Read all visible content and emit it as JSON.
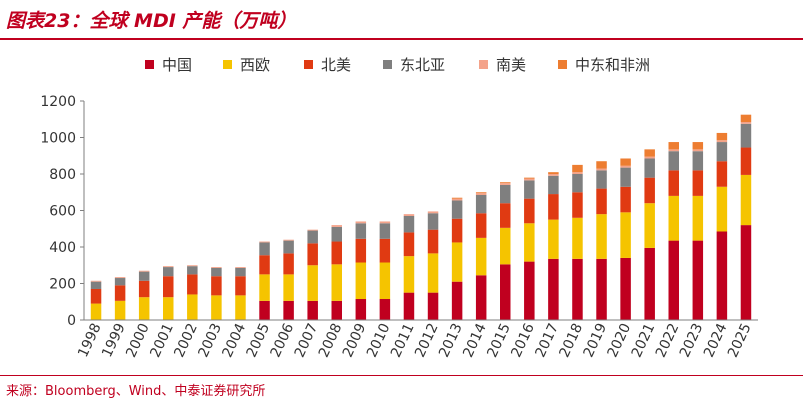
{
  "header": {
    "title": "图表23：全球 MDI 产能（万吨）"
  },
  "footer": {
    "source": "来源：Bloomberg、Wind、中泰证券研究所"
  },
  "colors": {
    "中国": "#c0001f",
    "西欧": "#f5c400",
    "北美": "#e03a12",
    "东北亚": "#7f7f7f",
    "南美": "#f4a38a",
    "中东和非洲": "#ed7d31"
  },
  "chart_data": {
    "type": "bar",
    "stacked": true,
    "title": "全球 MDI 产能（万吨）",
    "xlabel": "",
    "ylabel": "",
    "ylim": [
      0,
      1200
    ],
    "yticks": [
      0,
      200,
      400,
      600,
      800,
      1000,
      1200
    ],
    "grid": false,
    "legend_position": "top",
    "categories": [
      "1998",
      "1999",
      "2000",
      "2001",
      "2002",
      "2003",
      "2004",
      "2005",
      "2006",
      "2007",
      "2008",
      "2009",
      "2010",
      "2011",
      "2012",
      "2013",
      "2014",
      "2015",
      "2016",
      "2017",
      "2018",
      "2019",
      "2020",
      "2021",
      "2022",
      "2023",
      "2024",
      "2025"
    ],
    "series": [
      {
        "name": "中国",
        "values": [
          0,
          0,
          0,
          0,
          0,
          0,
          0,
          105,
          105,
          105,
          105,
          115,
          115,
          150,
          150,
          210,
          245,
          305,
          320,
          335,
          335,
          335,
          340,
          395,
          435,
          435,
          485,
          520
        ]
      },
      {
        "name": "西欧",
        "values": [
          90,
          105,
          125,
          125,
          140,
          135,
          135,
          145,
          145,
          195,
          200,
          200,
          200,
          200,
          215,
          215,
          205,
          200,
          210,
          215,
          225,
          245,
          250,
          245,
          245,
          245,
          245,
          275
        ]
      },
      {
        "name": "北美",
        "values": [
          80,
          85,
          90,
          115,
          110,
          105,
          105,
          105,
          115,
          120,
          125,
          130,
          130,
          130,
          130,
          130,
          135,
          135,
          135,
          140,
          140,
          140,
          140,
          140,
          140,
          140,
          140,
          150
        ]
      },
      {
        "name": "东北亚",
        "values": [
          40,
          40,
          50,
          50,
          45,
          45,
          45,
          70,
          70,
          70,
          80,
          85,
          85,
          90,
          90,
          100,
          100,
          100,
          100,
          100,
          100,
          100,
          105,
          105,
          105,
          105,
          105,
          130
        ]
      },
      {
        "name": "南美",
        "values": [
          5,
          5,
          5,
          5,
          5,
          5,
          5,
          5,
          5,
          5,
          10,
          10,
          10,
          10,
          10,
          10,
          10,
          10,
          10,
          10,
          10,
          10,
          10,
          10,
          10,
          10,
          10,
          10
        ]
      },
      {
        "name": "中东和非洲",
        "values": [
          0,
          0,
          0,
          0,
          0,
          0,
          0,
          0,
          0,
          0,
          0,
          0,
          0,
          0,
          0,
          5,
          5,
          5,
          5,
          10,
          40,
          40,
          40,
          40,
          40,
          40,
          40,
          40
        ]
      }
    ]
  }
}
